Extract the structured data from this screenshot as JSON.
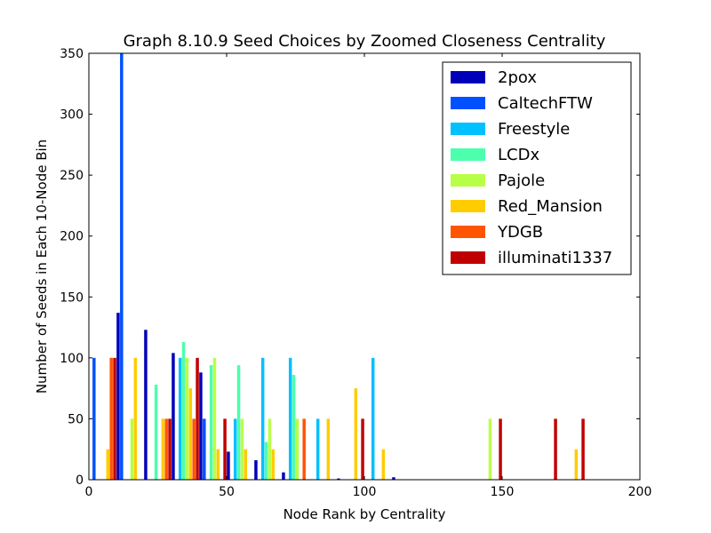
{
  "chart_data": {
    "type": "bar",
    "title": "Graph 8.10.9 Seed Choices by Zoomed Closeness Centrality",
    "xlabel": "Node Rank by Centrality",
    "ylabel": "Number of Seeds in Each 10-Node Bin",
    "xlim": [
      0,
      200
    ],
    "ylim": [
      0,
      350
    ],
    "xticks": [
      "0",
      "50",
      "100",
      "150",
      "200"
    ],
    "yticks": [
      "0",
      "50",
      "100",
      "150",
      "200",
      "250",
      "300",
      "350"
    ],
    "bin_width": 10,
    "grid": false,
    "legend_position": "top-right",
    "series": [
      {
        "name": "2pox",
        "color": "#0000b8",
        "bars": [
          {
            "bin": 10,
            "value": 137
          },
          {
            "bin": 20,
            "value": 123
          },
          {
            "bin": 30,
            "value": 104
          },
          {
            "bin": 40,
            "value": 88
          },
          {
            "bin": 50,
            "value": 23
          },
          {
            "bin": 60,
            "value": 16
          },
          {
            "bin": 70,
            "value": 6
          },
          {
            "bin": 90,
            "value": 1
          },
          {
            "bin": 110,
            "value": 2
          }
        ]
      },
      {
        "name": "CaltechFTW",
        "color": "#0050ff",
        "bars": [
          {
            "bin": 0,
            "value": 100
          },
          {
            "bin": 10,
            "value": 350
          },
          {
            "bin": 40,
            "value": 50
          }
        ]
      },
      {
        "name": "Freestyle",
        "color": "#00c0ff",
        "bars": [
          {
            "bin": 30,
            "value": 100
          },
          {
            "bin": 50,
            "value": 50
          },
          {
            "bin": 60,
            "value": 100
          },
          {
            "bin": 70,
            "value": 100
          },
          {
            "bin": 80,
            "value": 50
          },
          {
            "bin": 100,
            "value": 100
          }
        ]
      },
      {
        "name": "LCDx",
        "color": "#4cffac",
        "bars": [
          {
            "bin": 20,
            "value": 78
          },
          {
            "bin": 30,
            "value": 113
          },
          {
            "bin": 40,
            "value": 94
          },
          {
            "bin": 50,
            "value": 94
          },
          {
            "bin": 60,
            "value": 31
          },
          {
            "bin": 70,
            "value": 86
          }
        ]
      },
      {
        "name": "Pajole",
        "color": "#b8ff48",
        "bars": [
          {
            "bin": 10,
            "value": 50
          },
          {
            "bin": 30,
            "value": 100
          },
          {
            "bin": 40,
            "value": 100
          },
          {
            "bin": 50,
            "value": 50
          },
          {
            "bin": 60,
            "value": 50
          },
          {
            "bin": 70,
            "value": 50
          },
          {
            "bin": 140,
            "value": 50
          }
        ]
      },
      {
        "name": "Red_Mansion",
        "color": "#ffcc00",
        "bars": [
          {
            "bin": 0,
            "value": 25
          },
          {
            "bin": 10,
            "value": 100
          },
          {
            "bin": 20,
            "value": 50
          },
          {
            "bin": 30,
            "value": 75
          },
          {
            "bin": 40,
            "value": 25
          },
          {
            "bin": 50,
            "value": 25
          },
          {
            "bin": 60,
            "value": 25
          },
          {
            "bin": 80,
            "value": 50
          },
          {
            "bin": 90,
            "value": 75
          },
          {
            "bin": 100,
            "value": 25
          },
          {
            "bin": 170,
            "value": 25
          }
        ]
      },
      {
        "name": "YDGB",
        "color": "#ff5500",
        "bars": [
          {
            "bin": 0,
            "value": 100
          },
          {
            "bin": 20,
            "value": 50
          },
          {
            "bin": 30,
            "value": 50
          },
          {
            "bin": 70,
            "value": 50
          }
        ]
      },
      {
        "name": "illuminati1337",
        "color": "#c00000",
        "bars": [
          {
            "bin": 0,
            "value": 100
          },
          {
            "bin": 20,
            "value": 50
          },
          {
            "bin": 30,
            "value": 100
          },
          {
            "bin": 40,
            "value": 50
          },
          {
            "bin": 90,
            "value": 50
          },
          {
            "bin": 140,
            "value": 50
          },
          {
            "bin": 160,
            "value": 50
          },
          {
            "bin": 170,
            "value": 50
          }
        ]
      }
    ]
  }
}
